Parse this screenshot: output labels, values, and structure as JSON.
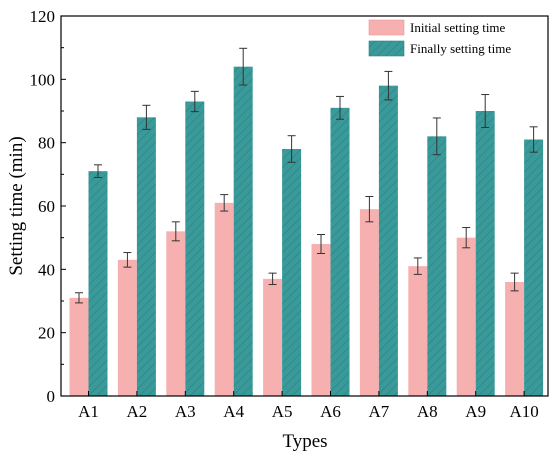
{
  "chart_data": {
    "type": "bar",
    "xlabel": "Types",
    "ylabel": "Setting time (min)",
    "categories": [
      "A1",
      "A2",
      "A3",
      "A4",
      "A5",
      "A6",
      "A7",
      "A8",
      "A9",
      "A10"
    ],
    "ylim": [
      0,
      120
    ],
    "yticks": [
      "0",
      "20",
      "40",
      "60",
      "80",
      "100",
      "120"
    ],
    "legend_position": "top-right",
    "grid": false,
    "series": [
      {
        "name": "Initial setting time",
        "color": "#f7b0b0",
        "values": [
          31,
          43,
          52,
          61,
          37,
          48,
          59,
          41,
          50,
          36
        ],
        "errors": [
          1.6,
          2.3,
          3.0,
          2.6,
          1.8,
          3.0,
          4.0,
          2.6,
          3.2,
          2.8
        ]
      },
      {
        "name": "Finally setting time",
        "color": "#3a9a9a",
        "values": [
          71,
          88,
          93,
          104,
          78,
          91,
          98,
          82,
          90,
          81
        ],
        "errors": [
          2.0,
          3.8,
          3.2,
          5.8,
          4.2,
          3.6,
          4.5,
          5.8,
          5.2,
          4.0
        ]
      }
    ]
  }
}
